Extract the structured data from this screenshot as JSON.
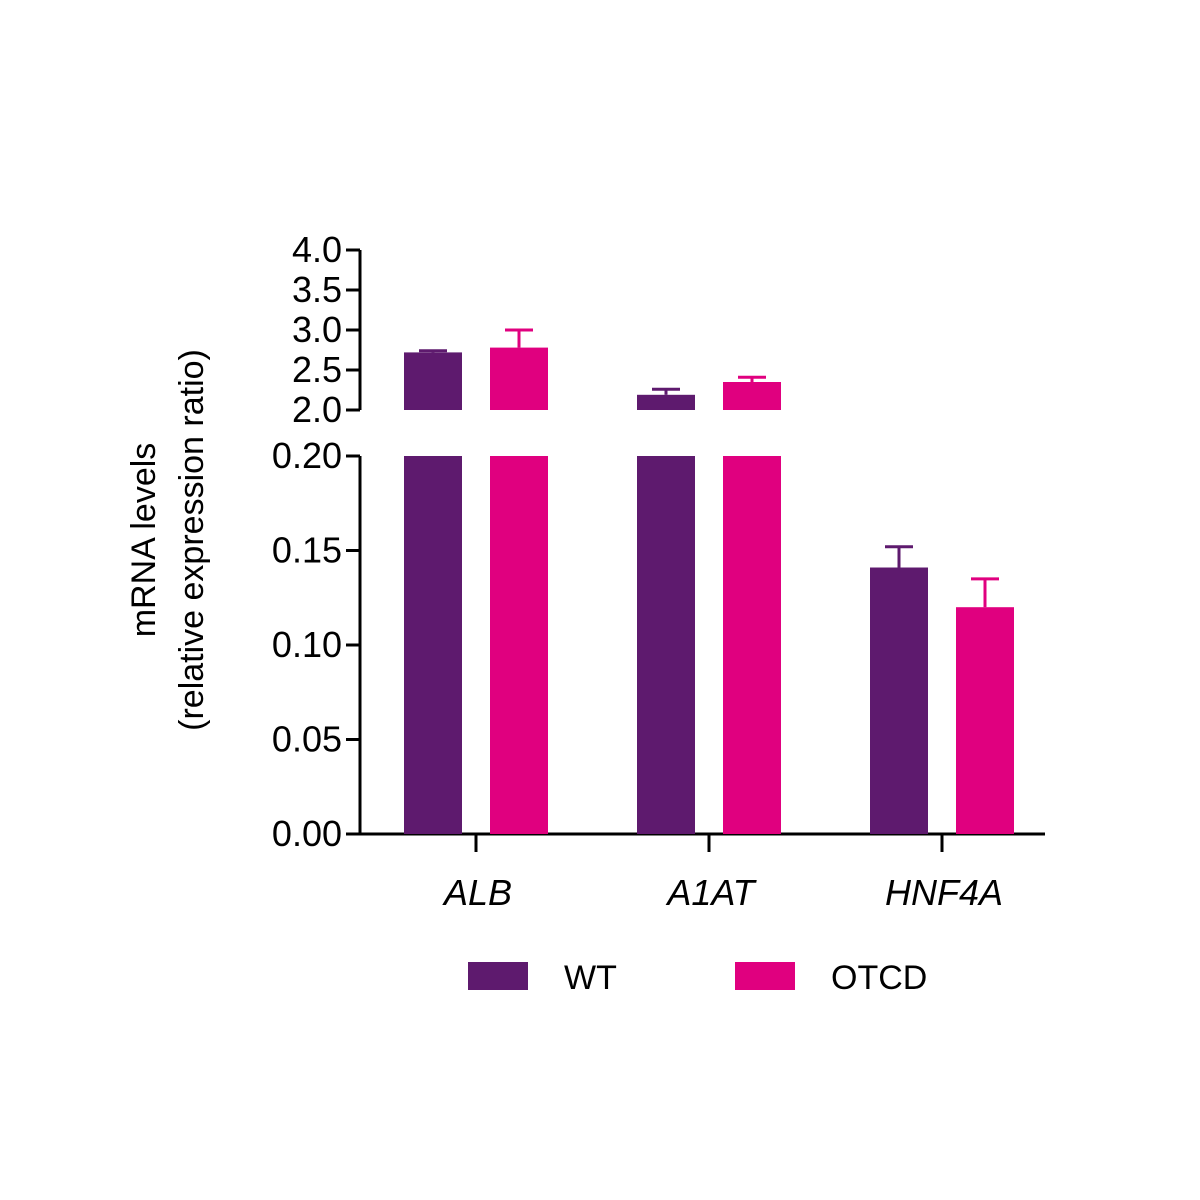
{
  "chart_data": {
    "type": "bar",
    "title": "",
    "xlabel": "",
    "ylabel_lines": [
      "mRNA levels",
      "(relative expression ratio)"
    ],
    "categories": [
      "ALB",
      "A1AT",
      "HNF4A"
    ],
    "series": [
      {
        "name": "WT",
        "color": "#5e1a6e",
        "values": [
          2.72,
          2.19,
          0.141
        ],
        "errors": [
          0.02,
          0.07,
          0.011
        ]
      },
      {
        "name": "OTCD",
        "color": "#e0007f",
        "values": [
          2.78,
          2.35,
          0.12
        ],
        "errors": [
          0.22,
          0.06,
          0.015
        ]
      }
    ],
    "y_axis_segments": [
      {
        "range": [
          2.0,
          4.0
        ],
        "ticks": [
          "2.0",
          "2.5",
          "3.0",
          "3.5",
          "4.0"
        ]
      },
      {
        "range": [
          0.0,
          0.2
        ],
        "ticks": [
          "0.00",
          "0.05",
          "0.10",
          "0.15",
          "0.20"
        ]
      }
    ],
    "broken_axis": true,
    "grid": false,
    "legend_position": "bottom"
  }
}
